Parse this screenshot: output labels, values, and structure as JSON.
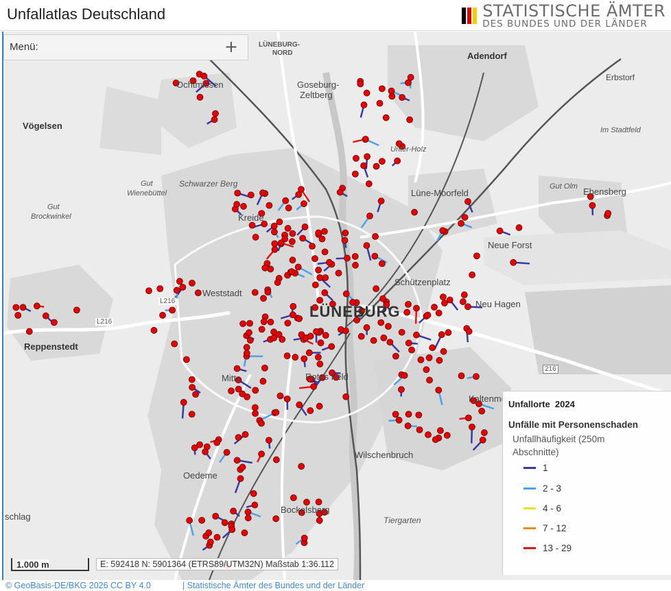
{
  "app": {
    "title": "Unfallatlas Deutschland",
    "logo_line1": "STATISTISCHE ÄMTER",
    "logo_line2": "DES BUNDES UND DER LÄNDER",
    "logo_colors": [
      "#000000",
      "#dd0000",
      "#ffcc00"
    ]
  },
  "menu": {
    "label": "Menü:",
    "icon": "plus-icon"
  },
  "map": {
    "labels": {
      "lueneburg_nord_1": "LÜNEBURG-",
      "lueneburg_nord_2": "NORD",
      "adendorf": "Adendorf",
      "erbstorf": "Erbstorf",
      "ochtmissen": "Ochtmissen",
      "goseburg_1": "Goseburg-",
      "goseburg_2": "Zeltberg",
      "voegelsen": "Vögelsen",
      "im_stadtfeld": "Im Stadtfeld",
      "unter_holz": "Unter-Holz",
      "gut_wienebuettel_1": "Gut",
      "gut_wienebuettel_2": "Wienebüttel",
      "schwarzer_berg": "Schwarzer Berg",
      "gut_olm": "Gut Olm",
      "ebensberg": "Ebensberg",
      "luene_moorfeld": "Lüne-Moorfeld",
      "gut_brockwinkel_1": "Gut",
      "gut_brockwinkel_2": "Brockwinkel",
      "kreideberg": "Kreide",
      "neue_forst": "Neue Forst",
      "schuetzenplatz": "Schützenplatz",
      "weststadt": "Weststadt",
      "neu_hagen": "Neu Hagen",
      "lueneburg": "LÜNEBURG",
      "reppenstedt": "Reppenstedt",
      "mitte": "Mitte",
      "rotes_feld": "Rotes Feld",
      "kaltenmoor": "Kaltenmoor",
      "wilschenbruch": "Wilschenbruch",
      "oedeme": "Oedeme",
      "bockelsberg": "Bockelsberg",
      "tiergarten": "Tiergarten",
      "hasloh": "schlag",
      "l216": "L216",
      "l216b": "L216",
      "b216": "216"
    }
  },
  "legend": {
    "title": "Unfallorte",
    "year": "2024",
    "subtitle": "Unfälle mit Personenschaden",
    "description": "Unfallhäufigkeit (250m Abschnitte)",
    "classes": [
      {
        "range": "1",
        "color": "#3a3aa0"
      },
      {
        "range": "2 - 3",
        "color": "#4ea0e8"
      },
      {
        "range": "4 - 6",
        "color": "#f0e020"
      },
      {
        "range": "7 - 12",
        "color": "#f08a20"
      },
      {
        "range": "13 - 29",
        "color": "#e01818"
      }
    ],
    "point_color": "#e00000"
  },
  "scale": {
    "label": "1.000 m"
  },
  "status": {
    "coords": "E: 592418  N: 5901364 (ETRS89/UTM32N)  Maßstab 1:36.112"
  },
  "attribution": {
    "source1": "© GeoBasis-DE/BKG 2026 CC BY 4.0",
    "source2": "| Statistische Ämter des Bundes und der Länder"
  }
}
